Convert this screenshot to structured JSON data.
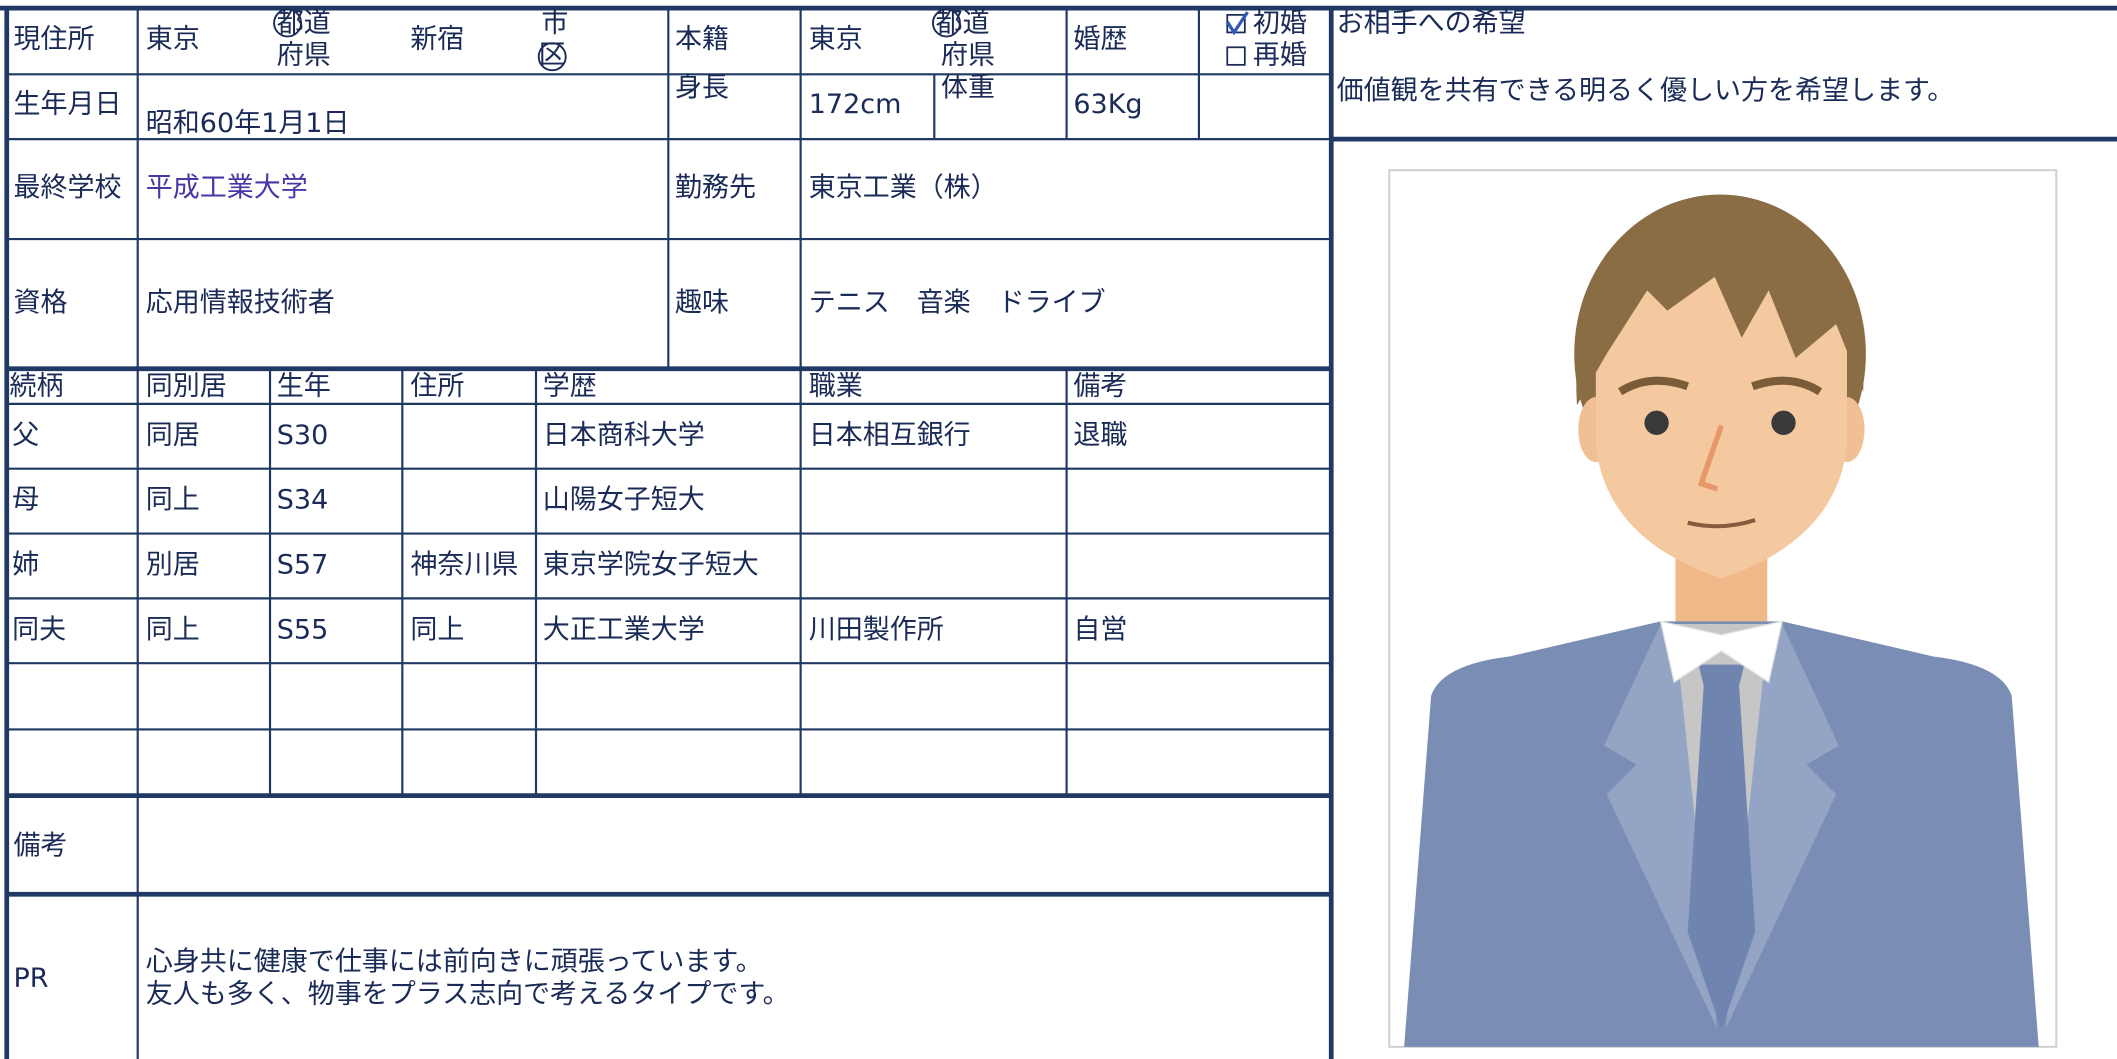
{
  "current_address": {
    "label": "現住所",
    "prefecture": "東京",
    "pref_suffix_top": "都道",
    "pref_suffix_bottom": "府県",
    "city": "新宿",
    "city_suffix_top": "市",
    "city_suffix_bottom": "区"
  },
  "registered_domicile": {
    "label": "本籍",
    "prefecture": "東京",
    "pref_suffix_top": "都道",
    "pref_suffix_bottom": "府県"
  },
  "marital_history": {
    "label": "婚歴",
    "options": [
      {
        "label": "初婚",
        "checked": true
      },
      {
        "label": "再婚",
        "checked": false
      }
    ]
  },
  "birth_date": {
    "label": "生年月日",
    "value": "昭和60年1月1日"
  },
  "height": {
    "label": "身長",
    "value": "172cm"
  },
  "weight": {
    "label": "体重",
    "value": "63Kg"
  },
  "school": {
    "label": "最終学校",
    "value": "平成工業大学"
  },
  "employer": {
    "label": "勤務先",
    "value": "東京工業（株）"
  },
  "qualification": {
    "label": "資格",
    "value": "応用情報技術者"
  },
  "hobbies": {
    "label": "趣味",
    "value": "テニス　音楽　ドライブ"
  },
  "family": {
    "columns": [
      "続柄",
      "同別居",
      "生年",
      "住所",
      "学歴",
      "職業",
      "備考"
    ],
    "rows": [
      [
        "父",
        "同居",
        "S30",
        null,
        "日本商科大学",
        "日本相互銀行",
        "退職"
      ],
      [
        "母",
        "同上",
        "S34",
        null,
        "山陽女子短大",
        null,
        null
      ],
      [
        "姉",
        "別居",
        "S57",
        "神奈川県",
        "東京学院女子短大",
        null,
        null
      ],
      [
        "同夫",
        "同上",
        "S55",
        "同上",
        "大正工業大学",
        "川田製作所",
        "自営"
      ]
    ]
  },
  "remarks": {
    "label": "備考"
  },
  "pr": {
    "label": "PR",
    "lines": [
      "心身共に健康で仕事には前向きに頑張っています。",
      "友人も多く、物事をプラス志向で考えるタイプです。"
    ]
  },
  "partner_wish": {
    "title": "お相手への希望",
    "text": "価値観を共有できる明るく優しい方を希望します。"
  }
}
